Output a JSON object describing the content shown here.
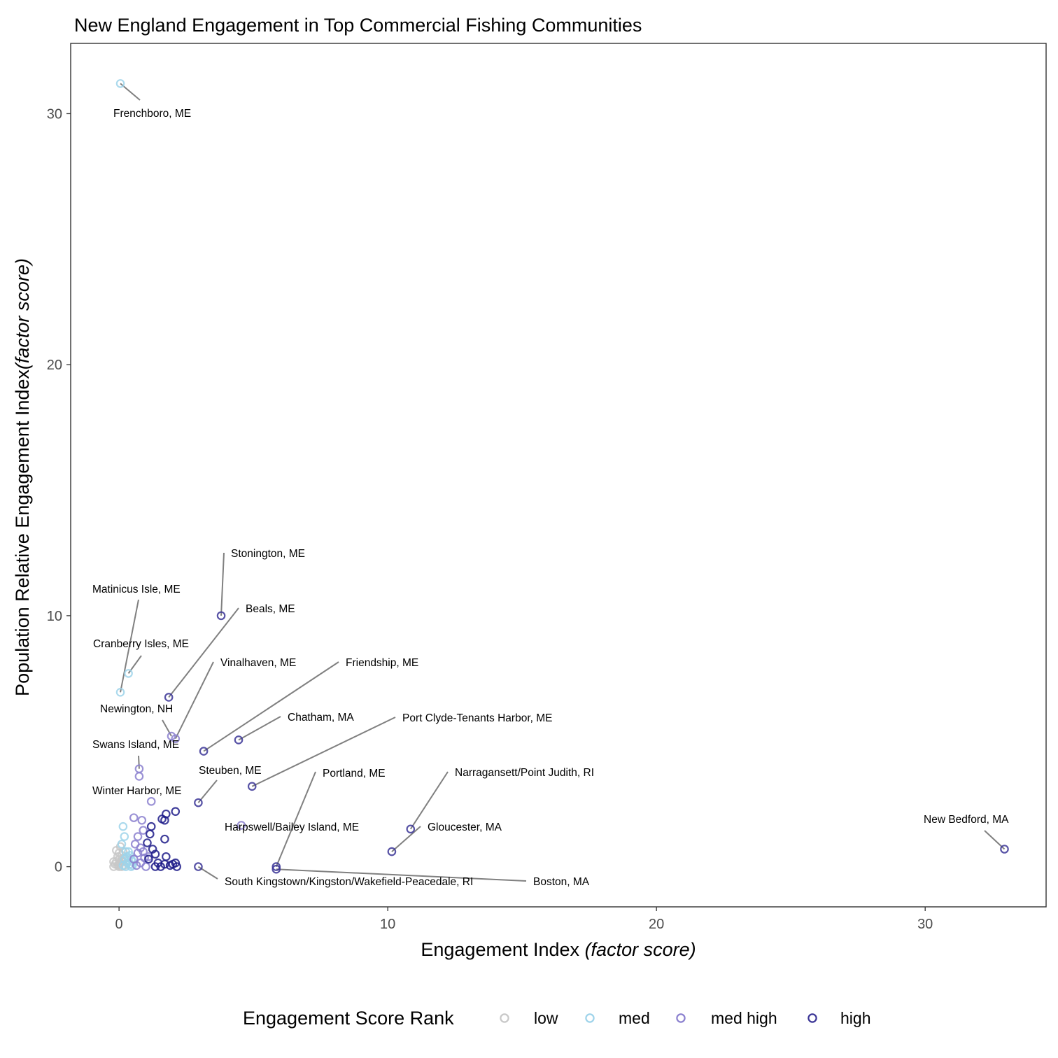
{
  "chart_data": {
    "type": "scatter",
    "title": "New England Engagement in Top Commercial Fishing Communities",
    "xlabel": "Engagement Index",
    "xlabel_italic": "(factor score)",
    "ylabel": "Population Relative Engagement Index",
    "ylabel_italic": "(factor score)",
    "xlim": [
      -1.8,
      34.5
    ],
    "ylim": [
      -1.6,
      32.8
    ],
    "xticks": [
      0,
      10,
      20,
      30
    ],
    "yticks": [
      0,
      10,
      20,
      30
    ],
    "grid": false,
    "legend": {
      "title": "Engagement Score Rank",
      "position": "bottom",
      "entries": [
        "low",
        "med",
        "med high",
        "high"
      ]
    },
    "colors": {
      "low": "#c8c8c8",
      "med": "#9ed3ea",
      "med high": "#8b80cf",
      "high": "#3b3596",
      "high_dark": "#1f1c8a",
      "leader": "#808080"
    },
    "series": [
      {
        "name": "low",
        "points": [
          [
            -0.2,
            0.0
          ],
          [
            -0.15,
            0.1
          ],
          [
            -0.1,
            0.2
          ],
          [
            -0.05,
            0.05
          ],
          [
            0.0,
            0.0
          ],
          [
            0.0,
            0.3
          ],
          [
            0.05,
            0.15
          ],
          [
            0.1,
            0.0
          ],
          [
            0.1,
            0.45
          ],
          [
            0.15,
            0.2
          ],
          [
            0.2,
            0.05
          ],
          [
            -0.1,
            0.65
          ],
          [
            0.0,
            0.55
          ],
          [
            0.05,
            0.8
          ],
          [
            0.15,
            0.6
          ],
          [
            0.2,
            0.35
          ],
          [
            -0.2,
            0.2
          ],
          [
            -0.05,
            0.4
          ],
          [
            0.1,
            0.25
          ],
          [
            0.0,
            0.1
          ]
        ]
      },
      {
        "name": "med",
        "points": [
          [
            0.05,
            31.2
          ],
          [
            0.35,
            7.7
          ],
          [
            0.05,
            6.95
          ],
          [
            0.15,
            1.6
          ],
          [
            0.2,
            1.2
          ],
          [
            0.1,
            0.9
          ],
          [
            0.25,
            0.6
          ],
          [
            0.3,
            0.4
          ],
          [
            0.35,
            0.25
          ],
          [
            0.4,
            0.1
          ],
          [
            0.45,
            0.0
          ],
          [
            0.3,
            0.15
          ],
          [
            0.2,
            0.3
          ],
          [
            0.5,
            0.2
          ],
          [
            0.4,
            0.45
          ],
          [
            0.15,
            0.05
          ],
          [
            0.25,
            0.0
          ],
          [
            0.35,
            0.6
          ],
          [
            0.5,
            0.05
          ],
          [
            0.45,
            0.3
          ]
        ]
      },
      {
        "name": "med high",
        "points": [
          [
            2.1,
            5.1
          ],
          [
            1.95,
            5.2
          ],
          [
            0.75,
            3.6
          ],
          [
            0.75,
            3.9
          ],
          [
            1.2,
            2.6
          ],
          [
            4.55,
            1.65
          ],
          [
            0.55,
            1.95
          ],
          [
            0.85,
            1.85
          ],
          [
            0.7,
            1.2
          ],
          [
            0.9,
            1.45
          ],
          [
            0.6,
            0.9
          ],
          [
            0.8,
            0.75
          ],
          [
            0.7,
            0.55
          ],
          [
            0.95,
            0.35
          ],
          [
            0.8,
            0.15
          ],
          [
            0.65,
            0.05
          ],
          [
            1.0,
            0.0
          ],
          [
            0.9,
            0.6
          ],
          [
            1.1,
            0.4
          ],
          [
            0.55,
            0.3
          ]
        ]
      },
      {
        "name": "high",
        "points": [
          [
            32.95,
            0.7
          ],
          [
            10.85,
            1.5
          ],
          [
            10.15,
            0.6
          ],
          [
            5.85,
            0.0
          ],
          [
            5.85,
            -0.1
          ],
          [
            3.8,
            10.0
          ],
          [
            1.85,
            6.75
          ],
          [
            3.15,
            4.6
          ],
          [
            4.45,
            5.05
          ],
          [
            4.95,
            3.2
          ],
          [
            2.95,
            2.55
          ],
          [
            2.95,
            0.0
          ],
          [
            2.1,
            2.2
          ],
          [
            1.75,
            2.1
          ],
          [
            1.6,
            1.9
          ],
          [
            1.7,
            1.85
          ],
          [
            1.7,
            1.1
          ],
          [
            1.2,
            1.6
          ],
          [
            1.15,
            1.3
          ],
          [
            1.05,
            0.95
          ],
          [
            1.25,
            0.7
          ],
          [
            1.35,
            0.5
          ],
          [
            1.1,
            0.3
          ],
          [
            1.45,
            0.15
          ],
          [
            1.55,
            0.0
          ],
          [
            1.35,
            0.0
          ],
          [
            1.7,
            0.1
          ],
          [
            1.9,
            0.05
          ],
          [
            2.0,
            0.1
          ],
          [
            1.75,
            0.4
          ],
          [
            2.1,
            0.15
          ],
          [
            2.15,
            0.0
          ]
        ]
      }
    ],
    "annotations": [
      {
        "text": "Frenchboro, ME",
        "x": 0.05,
        "y": 31.2
      },
      {
        "text": "Stonington, ME",
        "x": 3.8,
        "y": 10.0
      },
      {
        "text": "Matinicus Isle, ME",
        "x": 0.05,
        "y": 6.95
      },
      {
        "text": "Beals, ME",
        "x": 1.85,
        "y": 6.75
      },
      {
        "text": "Cranberry Isles, ME",
        "x": 0.35,
        "y": 7.7
      },
      {
        "text": "Vinalhaven, ME",
        "x": 2.1,
        "y": 5.1
      },
      {
        "text": "Friendship, ME",
        "x": 3.15,
        "y": 4.6
      },
      {
        "text": "Newington, NH",
        "x": 1.95,
        "y": 5.2
      },
      {
        "text": "Chatham, MA",
        "x": 4.45,
        "y": 5.05
      },
      {
        "text": "Port Clyde-Tenants Harbor, ME",
        "x": 4.95,
        "y": 3.2
      },
      {
        "text": "Swans Island, ME",
        "x": 0.75,
        "y": 3.9
      },
      {
        "text": "Steuben, ME",
        "x": 2.95,
        "y": 2.55
      },
      {
        "text": "Portland, ME",
        "x": 5.85,
        "y": 0.0
      },
      {
        "text": "Narragansett/Point Judith, RI",
        "x": 10.85,
        "y": 1.5
      },
      {
        "text": "Winter Harbor, ME",
        "x": 1.2,
        "y": 2.6
      },
      {
        "text": "New Bedford, MA",
        "x": 32.95,
        "y": 0.7
      },
      {
        "text": "Harpswell/Bailey Island, ME",
        "x": 4.55,
        "y": 1.65
      },
      {
        "text": "Gloucester, MA",
        "x": 10.15,
        "y": 0.6
      },
      {
        "text": "South Kingstown/Kingston/Wakefield-Peacedale, RI",
        "x": 2.95,
        "y": 0.0
      },
      {
        "text": "Boston, MA",
        "x": 5.85,
        "y": -0.1
      }
    ]
  }
}
